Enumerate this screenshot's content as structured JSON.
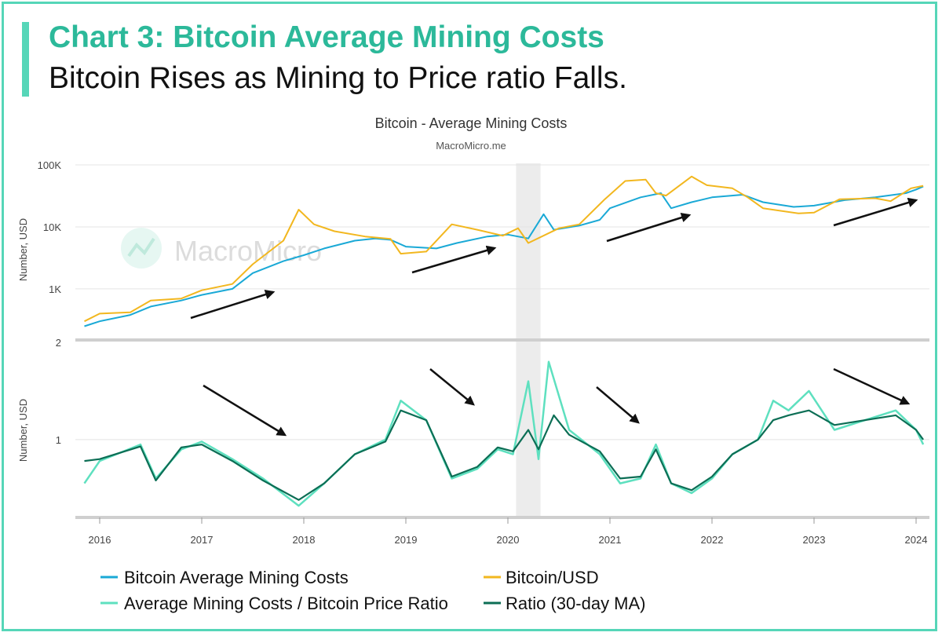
{
  "header": {
    "title": "Chart 3: Bitcoin Average Mining Costs",
    "subtitle": "Bitcoin Rises as Mining to Price ratio Falls."
  },
  "colors": {
    "accent": "#56d6b8",
    "mining_cost": "#1aa9d6",
    "btc_usd": "#f2b71f",
    "ratio": "#5ee0bf",
    "ratio_ma": "#0c6e55"
  },
  "chart_data": {
    "type": "line",
    "title": "Bitcoin - Average Mining Costs",
    "subtitle": "MacroMicro.me",
    "watermark": "MacroMicro",
    "x_ticks": [
      "2016",
      "2017",
      "2018",
      "2019",
      "2020",
      "2021",
      "2022",
      "2023",
      "2024"
    ],
    "top_panel": {
      "ylabel": "Number, USD",
      "yscale": "log",
      "y_ticks": [
        "1K",
        "10K",
        "100K"
      ],
      "ylim": [
        150,
        100000
      ],
      "series": [
        {
          "name": "Bitcoin Average Mining Costs",
          "color": "#1aa9d6",
          "points": [
            [
              2015.85,
              250
            ],
            [
              2016.0,
              300
            ],
            [
              2016.3,
              380
            ],
            [
              2016.5,
              520
            ],
            [
              2016.8,
              650
            ],
            [
              2017.0,
              800
            ],
            [
              2017.3,
              1000
            ],
            [
              2017.5,
              1800
            ],
            [
              2017.8,
              2800
            ],
            [
              2018.0,
              3500
            ],
            [
              2018.2,
              4500
            ],
            [
              2018.5,
              6000
            ],
            [
              2018.7,
              6500
            ],
            [
              2018.85,
              6200
            ],
            [
              2019.0,
              4800
            ],
            [
              2019.3,
              4500
            ],
            [
              2019.5,
              5500
            ],
            [
              2019.8,
              7000
            ],
            [
              2020.0,
              7500
            ],
            [
              2020.2,
              6500
            ],
            [
              2020.35,
              16000
            ],
            [
              2020.45,
              9000
            ],
            [
              2020.7,
              10500
            ],
            [
              2020.9,
              13000
            ],
            [
              2021.0,
              20000
            ],
            [
              2021.3,
              30000
            ],
            [
              2021.5,
              35000
            ],
            [
              2021.6,
              20000
            ],
            [
              2021.8,
              25000
            ],
            [
              2022.0,
              30000
            ],
            [
              2022.3,
              33000
            ],
            [
              2022.5,
              25000
            ],
            [
              2022.8,
              21000
            ],
            [
              2023.0,
              22000
            ],
            [
              2023.3,
              27000
            ],
            [
              2023.6,
              30000
            ],
            [
              2023.9,
              35000
            ],
            [
              2024.0,
              40000
            ],
            [
              2024.07,
              45000
            ]
          ]
        },
        {
          "name": "Bitcoin/USD",
          "color": "#f2b71f",
          "points": [
            [
              2015.85,
              300
            ],
            [
              2016.0,
              400
            ],
            [
              2016.3,
              420
            ],
            [
              2016.5,
              650
            ],
            [
              2016.8,
              700
            ],
            [
              2017.0,
              950
            ],
            [
              2017.3,
              1200
            ],
            [
              2017.5,
              2500
            ],
            [
              2017.8,
              6000
            ],
            [
              2017.95,
              19000
            ],
            [
              2018.1,
              11000
            ],
            [
              2018.3,
              8500
            ],
            [
              2018.6,
              7000
            ],
            [
              2018.85,
              6400
            ],
            [
              2018.95,
              3700
            ],
            [
              2019.2,
              4000
            ],
            [
              2019.45,
              11000
            ],
            [
              2019.7,
              9000
            ],
            [
              2019.95,
              7200
            ],
            [
              2020.1,
              9500
            ],
            [
              2020.2,
              5500
            ],
            [
              2020.5,
              9500
            ],
            [
              2020.7,
              11000
            ],
            [
              2020.95,
              28000
            ],
            [
              2021.15,
              55000
            ],
            [
              2021.35,
              58000
            ],
            [
              2021.45,
              35000
            ],
            [
              2021.55,
              32000
            ],
            [
              2021.8,
              65000
            ],
            [
              2021.95,
              47000
            ],
            [
              2022.2,
              42000
            ],
            [
              2022.35,
              30000
            ],
            [
              2022.5,
              20000
            ],
            [
              2022.85,
              16500
            ],
            [
              2023.0,
              17000
            ],
            [
              2023.25,
              28000
            ],
            [
              2023.6,
              29000
            ],
            [
              2023.75,
              26000
            ],
            [
              2023.95,
              42000
            ],
            [
              2024.07,
              46000
            ]
          ]
        }
      ]
    },
    "bottom_panel": {
      "ylabel": "Number, USD",
      "y_ticks": [
        "1",
        "2"
      ],
      "ylim": [
        0.2,
        2
      ],
      "series": [
        {
          "name": "Average Mining Costs / Bitcoin Price Ratio",
          "color": "#5ee0bf",
          "points": [
            [
              2015.85,
              0.55
            ],
            [
              2016.0,
              0.78
            ],
            [
              2016.4,
              0.95
            ],
            [
              2016.55,
              0.6
            ],
            [
              2016.8,
              0.9
            ],
            [
              2017.0,
              0.98
            ],
            [
              2017.3,
              0.8
            ],
            [
              2017.6,
              0.6
            ],
            [
              2017.95,
              0.32
            ],
            [
              2018.2,
              0.55
            ],
            [
              2018.5,
              0.85
            ],
            [
              2018.8,
              1.0
            ],
            [
              2018.95,
              1.4
            ],
            [
              2019.2,
              1.2
            ],
            [
              2019.45,
              0.6
            ],
            [
              2019.7,
              0.7
            ],
            [
              2019.9,
              0.9
            ],
            [
              2020.05,
              0.85
            ],
            [
              2020.2,
              1.6
            ],
            [
              2020.3,
              0.8
            ],
            [
              2020.4,
              1.8
            ],
            [
              2020.6,
              1.1
            ],
            [
              2020.9,
              0.85
            ],
            [
              2021.1,
              0.55
            ],
            [
              2021.3,
              0.6
            ],
            [
              2021.45,
              0.95
            ],
            [
              2021.6,
              0.55
            ],
            [
              2021.8,
              0.45
            ],
            [
              2022.0,
              0.6
            ],
            [
              2022.2,
              0.85
            ],
            [
              2022.45,
              1.0
            ],
            [
              2022.6,
              1.4
            ],
            [
              2022.75,
              1.3
            ],
            [
              2022.95,
              1.5
            ],
            [
              2023.2,
              1.1
            ],
            [
              2023.5,
              1.2
            ],
            [
              2023.8,
              1.3
            ],
            [
              2024.0,
              1.1
            ],
            [
              2024.07,
              0.95
            ]
          ]
        },
        {
          "name": "Ratio (30-day MA)",
          "color": "#0c6e55",
          "points": [
            [
              2015.85,
              0.78
            ],
            [
              2016.0,
              0.8
            ],
            [
              2016.4,
              0.93
            ],
            [
              2016.55,
              0.58
            ],
            [
              2016.8,
              0.92
            ],
            [
              2017.0,
              0.95
            ],
            [
              2017.3,
              0.78
            ],
            [
              2017.6,
              0.58
            ],
            [
              2017.95,
              0.38
            ],
            [
              2018.2,
              0.55
            ],
            [
              2018.5,
              0.85
            ],
            [
              2018.8,
              0.98
            ],
            [
              2018.95,
              1.3
            ],
            [
              2019.2,
              1.2
            ],
            [
              2019.45,
              0.62
            ],
            [
              2019.7,
              0.72
            ],
            [
              2019.9,
              0.92
            ],
            [
              2020.05,
              0.88
            ],
            [
              2020.2,
              1.1
            ],
            [
              2020.3,
              0.9
            ],
            [
              2020.45,
              1.25
            ],
            [
              2020.6,
              1.05
            ],
            [
              2020.9,
              0.88
            ],
            [
              2021.1,
              0.6
            ],
            [
              2021.3,
              0.62
            ],
            [
              2021.45,
              0.9
            ],
            [
              2021.6,
              0.55
            ],
            [
              2021.8,
              0.48
            ],
            [
              2022.0,
              0.62
            ],
            [
              2022.2,
              0.85
            ],
            [
              2022.45,
              1.0
            ],
            [
              2022.6,
              1.2
            ],
            [
              2022.75,
              1.25
            ],
            [
              2022.95,
              1.3
            ],
            [
              2023.2,
              1.15
            ],
            [
              2023.5,
              1.2
            ],
            [
              2023.8,
              1.25
            ],
            [
              2024.0,
              1.1
            ],
            [
              2024.07,
              1.0
            ]
          ]
        }
      ]
    },
    "shaded_region": [
      2020.08,
      2020.32
    ],
    "legend": [
      {
        "label": "Bitcoin Average Mining Costs",
        "color": "#1aa9d6"
      },
      {
        "label": "Bitcoin/USD",
        "color": "#f2b71f"
      },
      {
        "label": "Average Mining Costs / Bitcoin Price Ratio",
        "color": "#5ee0bf"
      },
      {
        "label": "Ratio (30-day MA)",
        "color": "#0c6e55"
      }
    ]
  }
}
